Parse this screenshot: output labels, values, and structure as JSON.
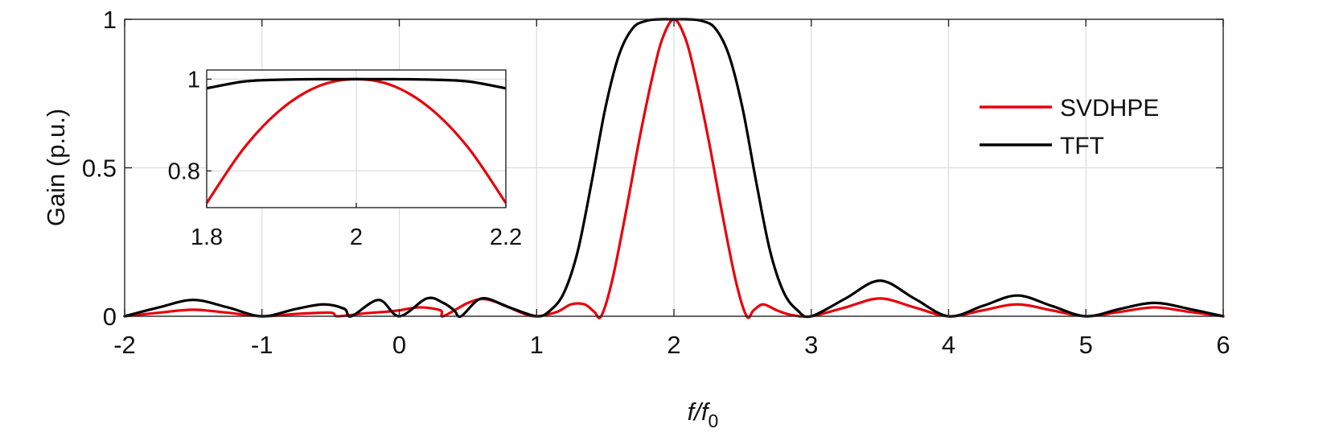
{
  "chart_data": [
    {
      "type": "line",
      "xlabel": "f/f0",
      "xlabel_main": "f/f",
      "xlabel_sub": "0",
      "ylabel": "Gain (p.u.)",
      "xlim": [
        -2,
        6
      ],
      "ylim": [
        0,
        1
      ],
      "xticks": [
        -2,
        -1,
        0,
        1,
        2,
        3,
        4,
        5,
        6
      ],
      "xtick_labels": [
        "-2",
        "-1",
        "0",
        "1",
        "2",
        "3",
        "4",
        "5",
        "6"
      ],
      "yticks": [
        0,
        0.5,
        1
      ],
      "ytick_labels": [
        "0",
        "0.5",
        "1"
      ],
      "grid": true,
      "legend_position": "top-right",
      "series": [
        {
          "name": "SVDHPE",
          "color": "#e8000b",
          "x": [
            -2,
            -1.75,
            -1.5,
            -1.25,
            -1,
            -0.75,
            -0.5,
            -0.45,
            -0.25,
            -0.1,
            0,
            0.15,
            0.3,
            0.32,
            0.5,
            0.62,
            0.75,
            0.9,
            1,
            1.15,
            1.25,
            1.35,
            1.42,
            1.47,
            1.55,
            1.65,
            1.75,
            1.85,
            1.92,
            2,
            2.08,
            2.15,
            2.25,
            2.35,
            2.45,
            2.53,
            2.58,
            2.65,
            2.75,
            2.85,
            3,
            3.25,
            3.5,
            3.75,
            4,
            4.25,
            4.5,
            4.75,
            5,
            5.25,
            5.5,
            5.75,
            6
          ],
          "y": [
            0,
            0.012,
            0.022,
            0.012,
            0,
            0.008,
            0.012,
            0,
            0.01,
            0.015,
            0.02,
            0.03,
            0.02,
            0,
            0.045,
            0.058,
            0.04,
            0.01,
            0,
            0.015,
            0.04,
            0.04,
            0.015,
            0,
            0.12,
            0.35,
            0.6,
            0.82,
            0.94,
            1,
            0.94,
            0.82,
            0.6,
            0.35,
            0.12,
            0,
            0.02,
            0.04,
            0.02,
            0.005,
            0,
            0.03,
            0.06,
            0.03,
            0,
            0.02,
            0.04,
            0.02,
            0,
            0.015,
            0.03,
            0.015,
            0
          ]
        },
        {
          "name": "TFT",
          "color": "#000000",
          "x": [
            -2,
            -1.75,
            -1.5,
            -1.25,
            -1,
            -0.75,
            -0.55,
            -0.4,
            -0.35,
            -0.15,
            0,
            0.2,
            0.32,
            0.4,
            0.45,
            0.6,
            0.8,
            1,
            1.1,
            1.2,
            1.3,
            1.4,
            1.5,
            1.6,
            1.7,
            1.8,
            1.9,
            2,
            2.1,
            2.2,
            2.3,
            2.4,
            2.5,
            2.6,
            2.7,
            2.8,
            2.9,
            3,
            3.25,
            3.5,
            3.75,
            4,
            4.25,
            4.5,
            4.75,
            5,
            5.25,
            5.5,
            5.75,
            6
          ],
          "y": [
            0,
            0.03,
            0.055,
            0.03,
            0,
            0.025,
            0.04,
            0.025,
            0,
            0.055,
            0,
            0.06,
            0.045,
            0.02,
            0,
            0.06,
            0.03,
            0,
            0.02,
            0.08,
            0.22,
            0.45,
            0.7,
            0.88,
            0.97,
            0.995,
            1,
            1,
            1,
            0.995,
            0.97,
            0.88,
            0.7,
            0.45,
            0.22,
            0.08,
            0.02,
            0,
            0.06,
            0.12,
            0.06,
            0,
            0.035,
            0.07,
            0.035,
            0,
            0.025,
            0.045,
            0.025,
            0
          ]
        }
      ]
    },
    {
      "type": "line",
      "inset": true,
      "xlim": [
        1.8,
        2.2
      ],
      "ylim": [
        0.72,
        1.02
      ],
      "xticks": [
        1.8,
        2,
        2.2
      ],
      "xtick_labels": [
        "1.8",
        "2",
        "2.2"
      ],
      "yticks": [
        0.8,
        1
      ],
      "ytick_labels": [
        "0.8",
        "1"
      ],
      "grid": true,
      "series": [
        {
          "name": "SVDHPE",
          "color": "#e8000b",
          "x": [
            1.8,
            1.85,
            1.9,
            1.95,
            2,
            2.05,
            2.1,
            2.15,
            2.2
          ],
          "y": [
            0.73,
            0.85,
            0.935,
            0.985,
            1,
            0.985,
            0.935,
            0.85,
            0.73
          ]
        },
        {
          "name": "TFT",
          "color": "#000000",
          "x": [
            1.8,
            1.85,
            1.9,
            1.95,
            2,
            2.05,
            2.1,
            2.15,
            2.2
          ],
          "y": [
            0.98,
            0.995,
            0.999,
            1,
            1,
            1,
            0.999,
            0.995,
            0.98
          ]
        }
      ]
    }
  ]
}
